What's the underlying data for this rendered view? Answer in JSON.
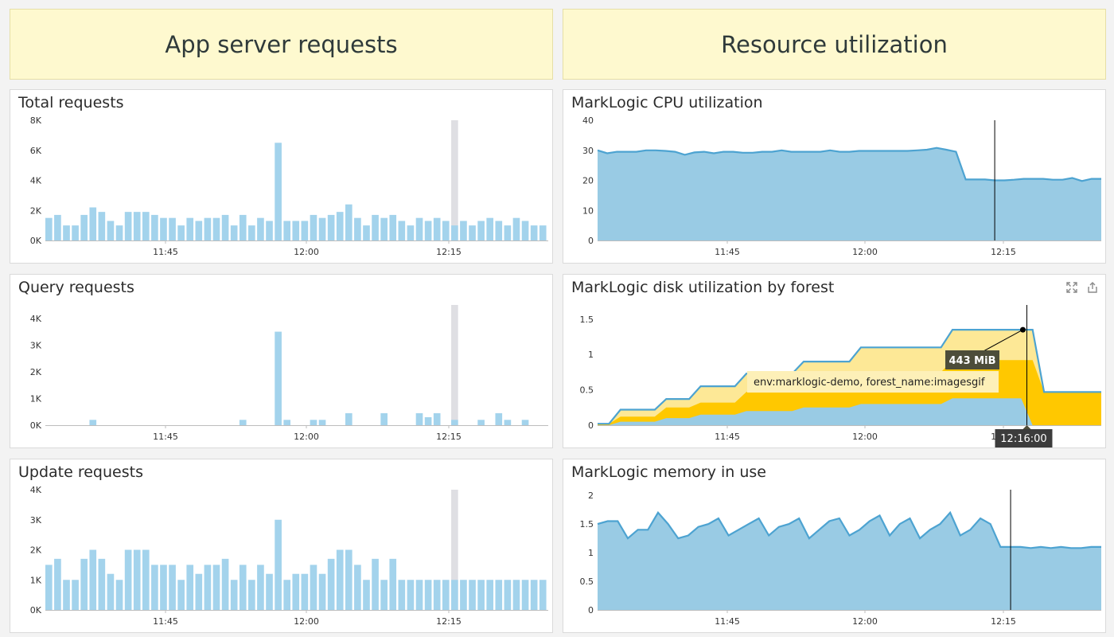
{
  "headers": {
    "left": "App server requests",
    "right": "Resource utilization"
  },
  "panels": {
    "total": {
      "title": "Total requests"
    },
    "query": {
      "title": "Query requests"
    },
    "update": {
      "title": "Update requests"
    },
    "cpu": {
      "title": "MarkLogic CPU utilization"
    },
    "disk": {
      "title": "MarkLogic disk utilization by forest"
    },
    "memory": {
      "title": "MarkLogic memory in use"
    }
  },
  "icons": {
    "expand": "expand-icon",
    "share": "share-icon"
  },
  "colors": {
    "bar": "#a3d3ec",
    "area": "#99cbe4",
    "line": "#4da3d1",
    "gold": "#ffc800",
    "lightgold": "#fde896",
    "highlight": "#dfdfe3",
    "tooltip_bg": "#fdf0b8",
    "label_bg": "#4d4d3a"
  },
  "chart_data": [
    {
      "id": "total",
      "type": "bar",
      "title": "Total requests",
      "ylim": [
        0,
        8000
      ],
      "yticks": [
        "0K",
        "2K",
        "4K",
        "6K",
        "8K"
      ],
      "xticks": [
        "11:45",
        "12:00",
        "12:15"
      ],
      "values": [
        1500,
        1700,
        1000,
        1000,
        1700,
        2200,
        1900,
        1300,
        1000,
        1900,
        1900,
        1900,
        1700,
        1500,
        1500,
        1000,
        1500,
        1300,
        1500,
        1500,
        1700,
        1000,
        1700,
        1000,
        1500,
        1300,
        6500,
        1300,
        1300,
        1300,
        1700,
        1500,
        1700,
        1900,
        2400,
        1500,
        1000,
        1700,
        1500,
        1700,
        1300,
        1000,
        1500,
        1300,
        1500,
        1300,
        1000,
        1300,
        1000,
        1300,
        1500,
        1300,
        1000,
        1500,
        1300,
        1000,
        1000
      ],
      "highlight_index": 46
    },
    {
      "id": "query",
      "type": "bar",
      "title": "Query requests",
      "ylim": [
        0,
        4500
      ],
      "yticks": [
        "0K",
        "1K",
        "2K",
        "3K",
        "4K"
      ],
      "xticks": [
        "11:45",
        "12:00",
        "12:15"
      ],
      "values": [
        0,
        0,
        0,
        0,
        0,
        200,
        0,
        0,
        0,
        0,
        0,
        0,
        0,
        0,
        0,
        0,
        0,
        0,
        0,
        0,
        0,
        0,
        200,
        0,
        0,
        0,
        3500,
        200,
        0,
        0,
        200,
        200,
        0,
        0,
        450,
        0,
        0,
        0,
        450,
        0,
        0,
        0,
        450,
        300,
        450,
        0,
        200,
        0,
        0,
        200,
        0,
        450,
        200,
        0,
        200,
        0,
        0
      ],
      "highlight_index": 46
    },
    {
      "id": "update",
      "type": "bar",
      "title": "Update requests",
      "ylim": [
        0,
        4000
      ],
      "yticks": [
        "0K",
        "1K",
        "2K",
        "3K",
        "4K"
      ],
      "xticks": [
        "11:45",
        "12:00",
        "12:15"
      ],
      "values": [
        1500,
        1700,
        1000,
        1000,
        1700,
        2000,
        1700,
        1200,
        1000,
        2000,
        2000,
        2000,
        1500,
        1500,
        1500,
        1000,
        1500,
        1200,
        1500,
        1500,
        1700,
        1000,
        1500,
        1000,
        1500,
        1200,
        3000,
        1000,
        1200,
        1200,
        1500,
        1200,
        1700,
        2000,
        2000,
        1500,
        1000,
        1700,
        1000,
        1700,
        1000,
        1000,
        1000,
        1000,
        1000,
        1000,
        1000,
        1000,
        1000,
        1000,
        1000,
        1000,
        1000,
        1000,
        1000,
        1000,
        1000
      ],
      "highlight_index": 46
    },
    {
      "id": "cpu",
      "type": "area",
      "title": "MarkLogic CPU utilization",
      "ylim": [
        0,
        40
      ],
      "yticks": [
        "0",
        "10",
        "20",
        "30",
        "40"
      ],
      "xticks": [
        "11:45",
        "12:00",
        "12:15"
      ],
      "values": [
        30,
        29,
        29.5,
        29.5,
        29.5,
        30,
        30,
        29.8,
        29.5,
        28.5,
        29.3,
        29.5,
        29,
        29.5,
        29.5,
        29.2,
        29.2,
        29.5,
        29.5,
        30,
        29.5,
        29.5,
        29.5,
        29.5,
        30,
        29.5,
        29.5,
        29.8,
        29.8,
        29.8,
        29.8,
        29.8,
        29.8,
        30,
        30.2,
        30.8,
        30.2,
        29.5,
        20.3,
        20.3,
        20.3,
        20,
        20,
        20.2,
        20.5,
        20.5,
        20.5,
        20.2,
        20.2,
        20.8,
        19.8,
        20.5,
        20.5
      ],
      "cursor_index": 41
    },
    {
      "id": "disk",
      "type": "area",
      "title": "MarkLogic disk utilization by forest",
      "ylim": [
        0,
        1.7
      ],
      "yticks": [
        "0",
        "0.5",
        "1",
        "1.5"
      ],
      "xticks": [
        "11:45",
        "12:00",
        "12:15"
      ],
      "series": [
        {
          "name": "env:marklogic-demo, forest_name:imagesgif",
          "role": "total",
          "values": [
            0.02,
            0.02,
            0.22,
            0.22,
            0.22,
            0.22,
            0.37,
            0.37,
            0.37,
            0.55,
            0.55,
            0.55,
            0.55,
            0.73,
            0.73,
            0.73,
            0.73,
            0.73,
            0.9,
            0.9,
            0.9,
            0.9,
            0.9,
            1.1,
            1.1,
            1.1,
            1.1,
            1.1,
            1.1,
            1.1,
            1.1,
            1.35,
            1.35,
            1.35,
            1.35,
            1.35,
            1.35,
            1.35,
            1.35,
            0.47,
            0.47,
            0.47,
            0.47,
            0.47,
            0.47
          ]
        },
        {
          "name": "gold",
          "role": "mid",
          "values": [
            0.02,
            0.02,
            0.12,
            0.12,
            0.12,
            0.12,
            0.25,
            0.25,
            0.25,
            0.32,
            0.32,
            0.32,
            0.32,
            0.47,
            0.47,
            0.47,
            0.47,
            0.47,
            0.59,
            0.59,
            0.59,
            0.59,
            0.59,
            0.75,
            0.75,
            0.75,
            0.75,
            0.75,
            0.75,
            0.75,
            0.75,
            0.92,
            0.92,
            0.92,
            0.92,
            0.92,
            0.92,
            0.92,
            0.92,
            0.47,
            0.47,
            0.47,
            0.47,
            0.47,
            0.47
          ]
        },
        {
          "name": "blue",
          "role": "base",
          "values": [
            0.0,
            0.0,
            0.05,
            0.05,
            0.05,
            0.05,
            0.1,
            0.1,
            0.1,
            0.15,
            0.15,
            0.15,
            0.15,
            0.2,
            0.2,
            0.2,
            0.2,
            0.2,
            0.25,
            0.25,
            0.25,
            0.25,
            0.25,
            0.3,
            0.3,
            0.3,
            0.3,
            0.3,
            0.3,
            0.3,
            0.3,
            0.38,
            0.38,
            0.38,
            0.38,
            0.38,
            0.38,
            0.38,
            0.0,
            0.0,
            0.0,
            0.0,
            0.0,
            0.0,
            0.0
          ]
        }
      ],
      "cursor_index": 37.5,
      "tooltip": {
        "value": "443 MiB",
        "series": "env:marklogic-demo, forest_name:imagesgif",
        "time": "12:16:00"
      }
    },
    {
      "id": "memory",
      "type": "area",
      "title": "MarkLogic memory in use",
      "ylim": [
        0,
        2.1
      ],
      "yticks": [
        "0",
        "0.5",
        "1",
        "1.5",
        "2"
      ],
      "xticks": [
        "11:45",
        "12:00",
        "12:15"
      ],
      "values": [
        1.5,
        1.55,
        1.55,
        1.25,
        1.4,
        1.4,
        1.7,
        1.5,
        1.25,
        1.3,
        1.45,
        1.5,
        1.6,
        1.3,
        1.4,
        1.5,
        1.6,
        1.3,
        1.45,
        1.5,
        1.6,
        1.25,
        1.4,
        1.55,
        1.6,
        1.3,
        1.4,
        1.55,
        1.65,
        1.3,
        1.5,
        1.6,
        1.25,
        1.4,
        1.5,
        1.7,
        1.3,
        1.4,
        1.6,
        1.5,
        1.1,
        1.1,
        1.1,
        1.08,
        1.1,
        1.08,
        1.1,
        1.08,
        1.08,
        1.1,
        1.1
      ],
      "cursor_index": 41
    }
  ]
}
